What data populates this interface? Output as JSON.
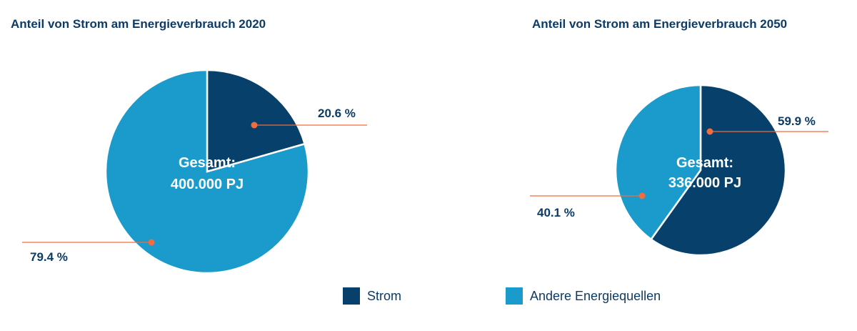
{
  "colors": {
    "strom": "#07416b",
    "andere": "#1a9bcb",
    "leader": "#f26c3f",
    "text": "#0d3b66",
    "center_text": "#ffffff"
  },
  "legend": {
    "strom": "Strom",
    "andere": "Andere Energiequellen"
  },
  "chart_data": [
    {
      "type": "pie",
      "title": "Anteil von Strom am Energieverbrauch 2020",
      "center_label": [
        "Gesamt:",
        "400.000 PJ"
      ],
      "slices": [
        {
          "name": "Strom",
          "value": 20.6,
          "label": "20.6 %"
        },
        {
          "name": "Andere Energiequellen",
          "value": 79.4,
          "label": "79.4 %"
        }
      ]
    },
    {
      "type": "pie",
      "title": "Anteil von Strom am Energieverbrauch 2050",
      "center_label": [
        "Gesamt:",
        "336.000 PJ"
      ],
      "slices": [
        {
          "name": "Strom",
          "value": 59.9,
          "label": "59.9 %"
        },
        {
          "name": "Andere Energiequellen",
          "value": 40.1,
          "label": "40.1 %"
        }
      ]
    }
  ]
}
